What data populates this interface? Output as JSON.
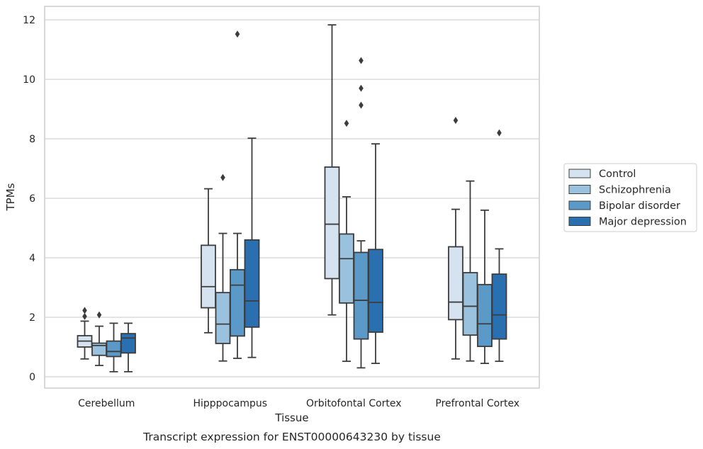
{
  "chart_data": {
    "type": "box",
    "xlabel": "Tissue",
    "ylabel": "TPMs",
    "caption": "Transcript expression for ENST00000643230 by tissue",
    "ylim": [
      -0.35,
      12.4
    ],
    "yticks": [
      0,
      2,
      4,
      6,
      8,
      10,
      12
    ],
    "grid": true,
    "legend_position": "right",
    "categories": [
      "Cerebellum",
      "Hipppocampus",
      "Orbitofontal Cortex",
      "Prefrontal Cortex"
    ],
    "series": [
      {
        "name": "Control",
        "color": "#d5e3f1",
        "boxes": [
          {
            "whisker_low": 0.6,
            "q1": 1.0,
            "median": 1.2,
            "q3": 1.38,
            "whisker_high": 1.87,
            "outliers": [
              2.03,
              2.23
            ]
          },
          {
            "whisker_low": 1.48,
            "q1": 2.32,
            "median": 3.03,
            "q3": 4.42,
            "whisker_high": 6.32,
            "outliers": []
          },
          {
            "whisker_low": 2.08,
            "q1": 3.3,
            "median": 5.13,
            "q3": 7.05,
            "whisker_high": 11.83,
            "outliers": []
          },
          {
            "whisker_low": 0.6,
            "q1": 1.92,
            "median": 2.51,
            "q3": 4.37,
            "whisker_high": 5.63,
            "outliers": [
              8.62
            ]
          }
        ]
      },
      {
        "name": "Schizophrenia",
        "color": "#9ac1dd",
        "boxes": [
          {
            "whisker_low": 0.38,
            "q1": 0.72,
            "median": 1.05,
            "q3": 1.13,
            "whisker_high": 1.7,
            "outliers": [
              2.08
            ]
          },
          {
            "whisker_low": 0.53,
            "q1": 1.12,
            "median": 1.77,
            "q3": 2.83,
            "whisker_high": 4.82,
            "outliers": [
              6.7
            ]
          },
          {
            "whisker_low": 0.52,
            "q1": 2.48,
            "median": 3.97,
            "q3": 4.8,
            "whisker_high": 6.05,
            "outliers": [
              8.52
            ]
          },
          {
            "whisker_low": 0.53,
            "q1": 1.4,
            "median": 2.37,
            "q3": 3.5,
            "whisker_high": 6.58,
            "outliers": []
          }
        ]
      },
      {
        "name": "Bipolar disorder",
        "color": "#5b9ac8",
        "boxes": [
          {
            "whisker_low": 0.17,
            "q1": 0.68,
            "median": 0.85,
            "q3": 1.2,
            "whisker_high": 1.8,
            "outliers": []
          },
          {
            "whisker_low": 0.62,
            "q1": 1.37,
            "median": 3.08,
            "q3": 3.6,
            "whisker_high": 4.82,
            "outliers": [
              11.52
            ]
          },
          {
            "whisker_low": 0.3,
            "q1": 1.27,
            "median": 2.57,
            "q3": 4.18,
            "whisker_high": 4.57,
            "outliers": [
              9.13,
              9.7,
              10.63
            ]
          },
          {
            "whisker_low": 0.45,
            "q1": 1.02,
            "median": 1.78,
            "q3": 3.1,
            "whisker_high": 5.6,
            "outliers": []
          }
        ]
      },
      {
        "name": "Major depression",
        "color": "#2a70b0",
        "boxes": [
          {
            "whisker_low": 0.17,
            "q1": 0.8,
            "median": 1.3,
            "q3": 1.45,
            "whisker_high": 1.8,
            "outliers": []
          },
          {
            "whisker_low": 0.65,
            "q1": 1.67,
            "median": 2.55,
            "q3": 4.6,
            "whisker_high": 8.02,
            "outliers": []
          },
          {
            "whisker_low": 0.45,
            "q1": 1.5,
            "median": 2.5,
            "q3": 4.28,
            "whisker_high": 7.83,
            "outliers": []
          },
          {
            "whisker_low": 0.52,
            "q1": 1.27,
            "median": 2.08,
            "q3": 3.45,
            "whisker_high": 4.3,
            "outliers": [
              8.2
            ]
          }
        ]
      }
    ]
  }
}
